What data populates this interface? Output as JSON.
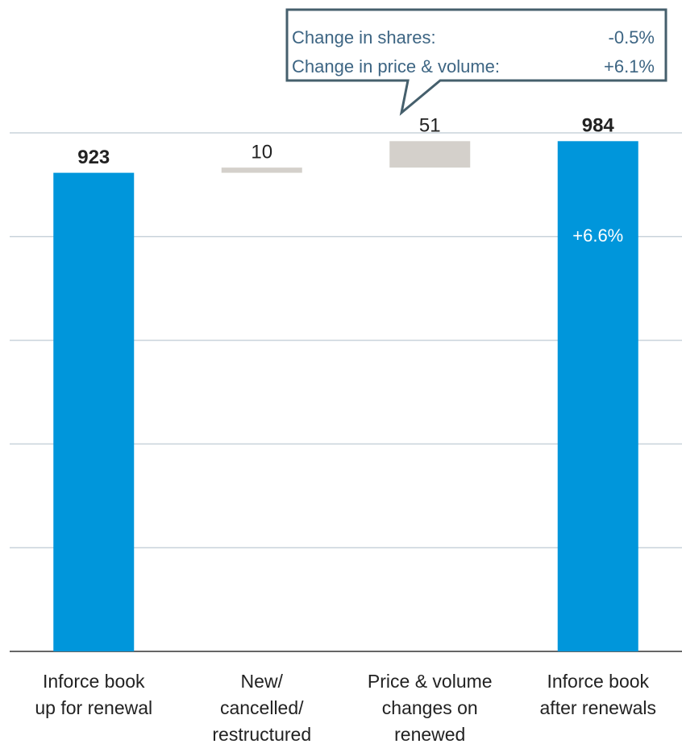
{
  "chart_data": {
    "type": "waterfall",
    "categories": [
      [
        "Inforce book",
        "up for renewal"
      ],
      [
        "New/",
        "cancelled/",
        "restructured"
      ],
      [
        "Price & volume",
        "changes on",
        "renewed"
      ],
      [
        "Inforce book",
        "after renewals"
      ]
    ],
    "values": [
      923,
      10,
      51,
      984
    ],
    "measure": [
      "total",
      "relative",
      "relative",
      "total"
    ],
    "colors": {
      "total": "#0096db",
      "relative": "#d4d0cb"
    },
    "bold_labels": [
      true,
      false,
      false,
      true
    ],
    "ylim": [
      0,
      1000
    ],
    "yticks": [
      0,
      200,
      400,
      600,
      800,
      1000
    ],
    "grid": true,
    "annotations": {
      "growth": "+6.6%",
      "callout": [
        [
          "Change in shares:",
          "-0.5%"
        ],
        [
          "Change in price & volume:",
          "+6.1%"
        ]
      ]
    }
  }
}
